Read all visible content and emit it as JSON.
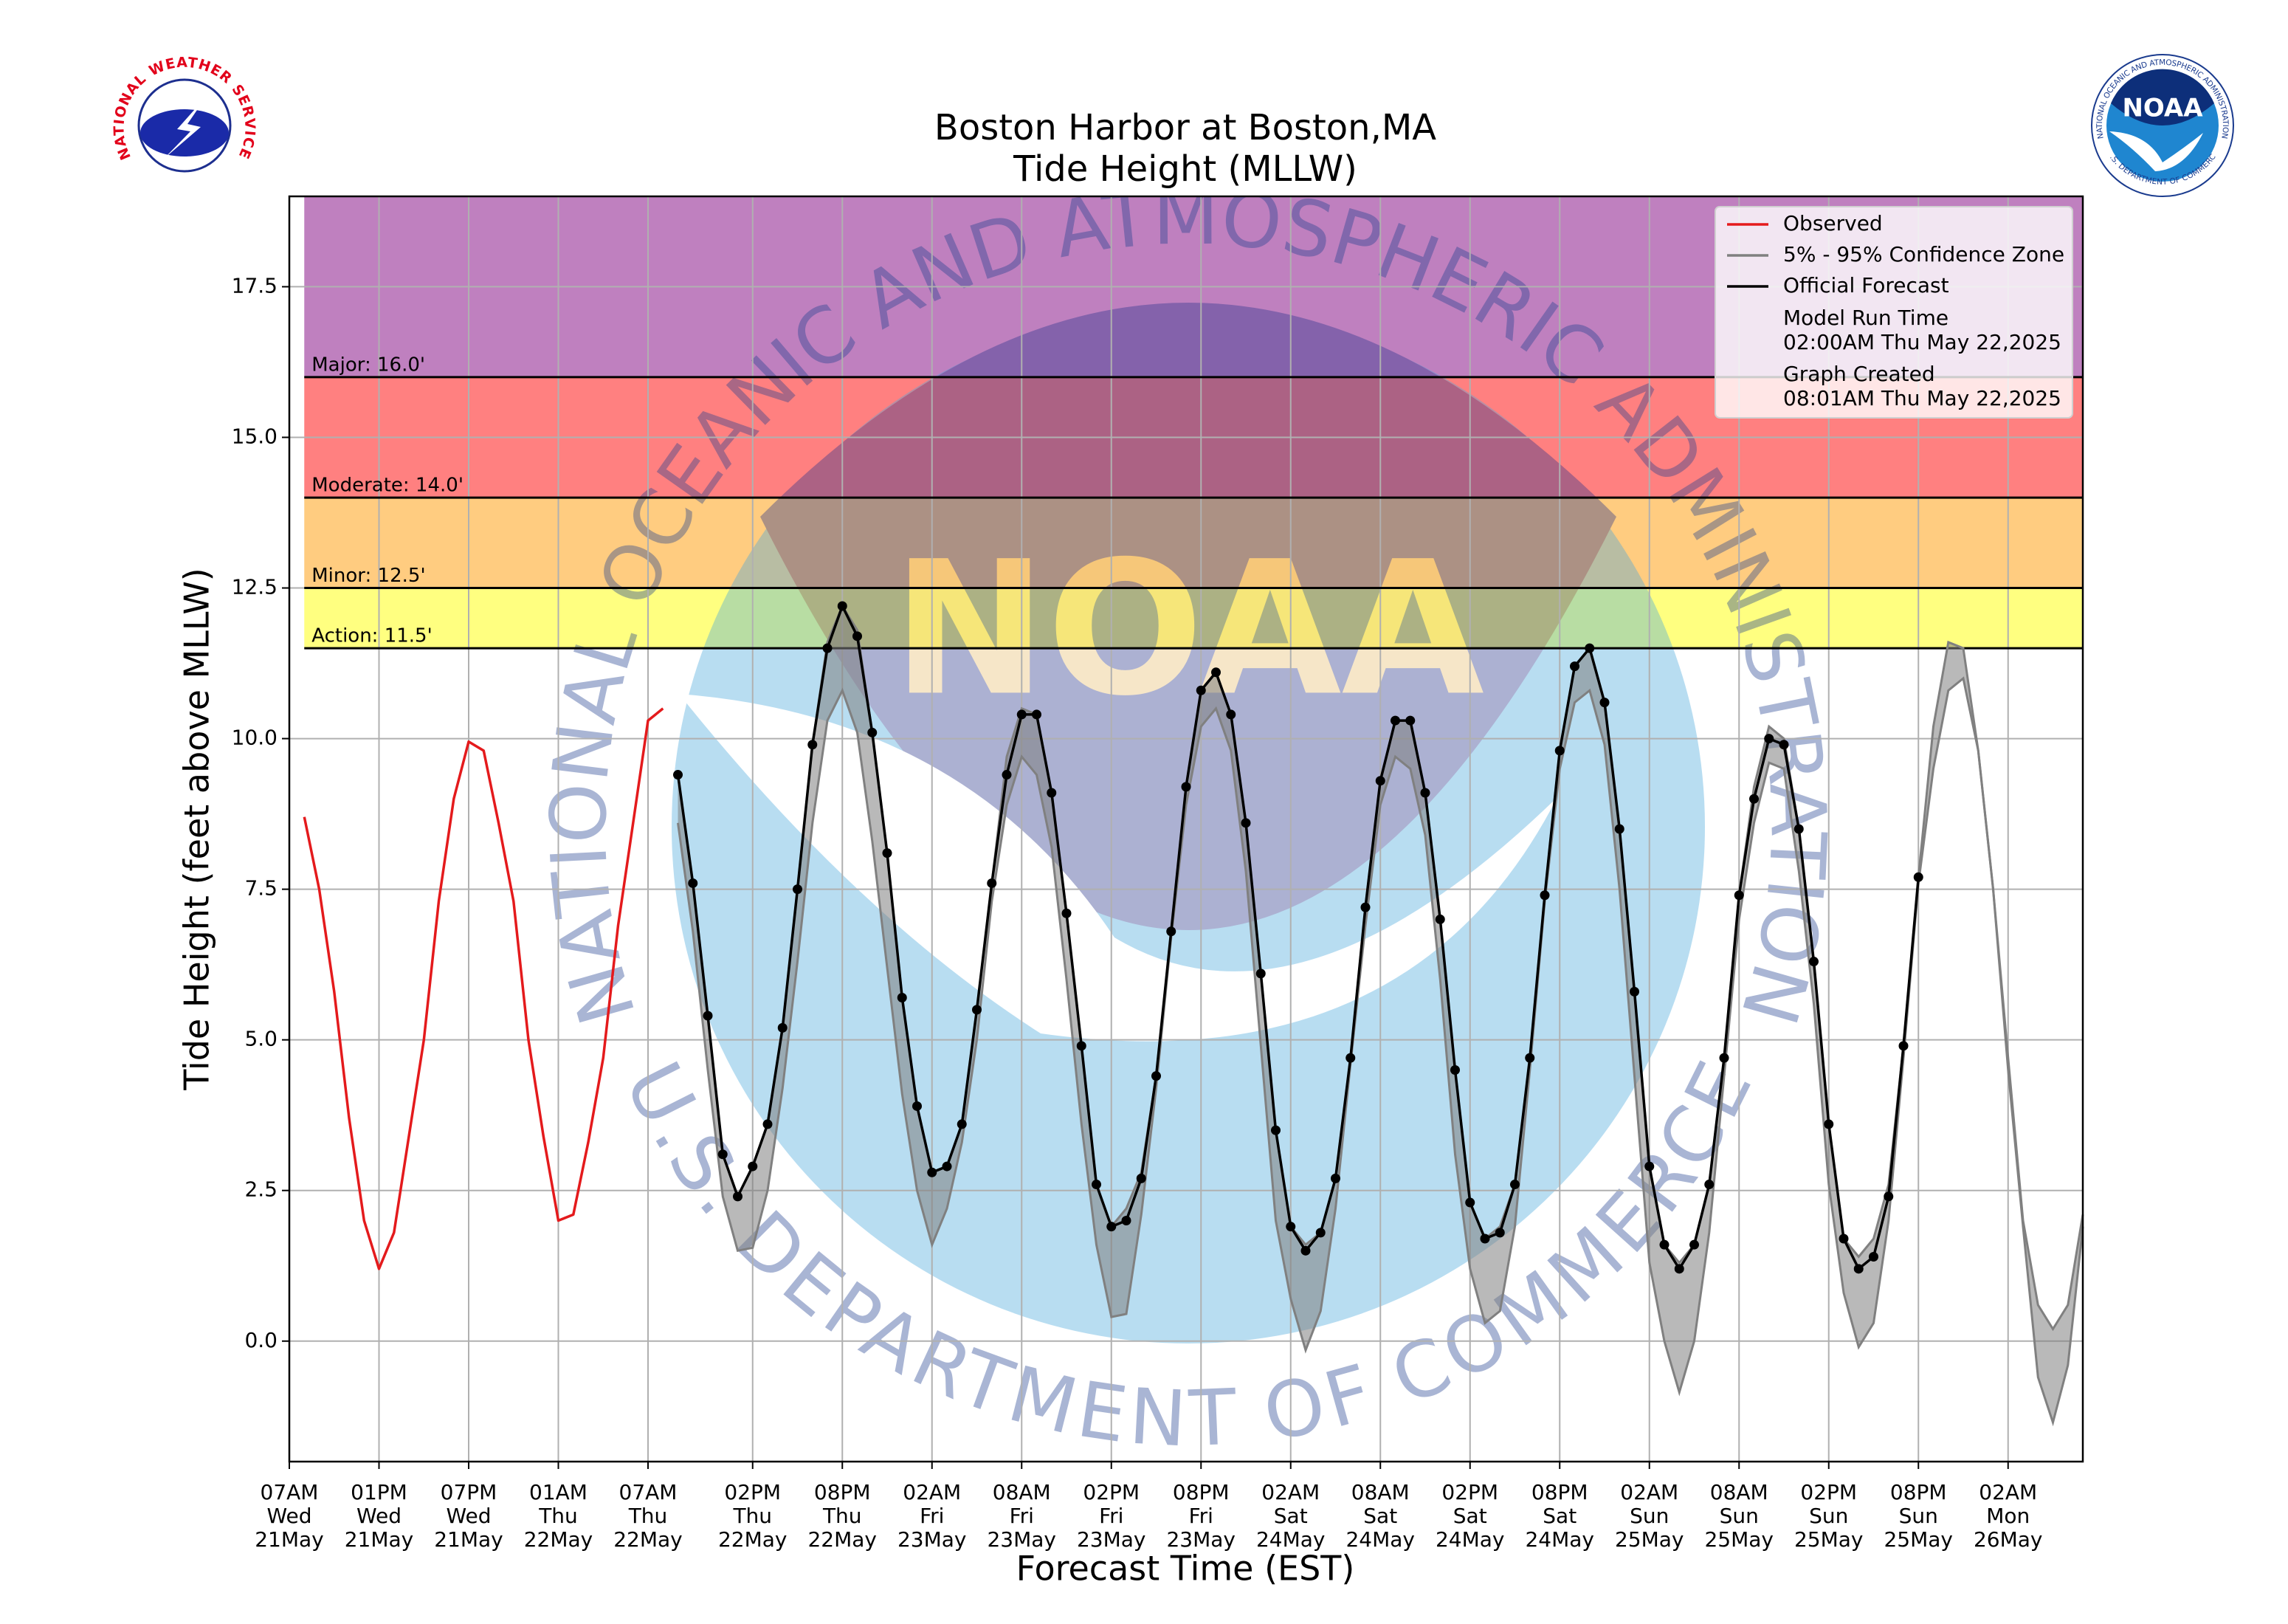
{
  "chart_data": {
    "type": "line",
    "title": "Boston Harbor at Boston,MA",
    "subtitle": "Tide Height (MLLW)",
    "xlabel": "Forecast Time (EST)",
    "ylabel": "Tide Height (feet above MLLW)",
    "xlim": [
      "21May 07:00",
      "26May 07:00"
    ],
    "xticks": [
      {
        "value": "21May 07:00",
        "label": "07AM\nWed\n21May"
      },
      {
        "value": "21May 13:00",
        "label": "01PM\nWed\n21May"
      },
      {
        "value": "21May 19:00",
        "label": "07PM\nWed\n21May"
      },
      {
        "value": "22May 01:00",
        "label": "01AM\nThu\n22May"
      },
      {
        "value": "22May 07:00",
        "label": "07AM\nThu\n22May"
      },
      {
        "value": "22May 14:00",
        "label": "02PM\nThu\n22May"
      },
      {
        "value": "22May 20:00",
        "label": "08PM\nThu\n22May"
      },
      {
        "value": "23May 02:00",
        "label": "02AM\nFri\n23May"
      },
      {
        "value": "23May 08:00",
        "label": "08AM\nFri\n23May"
      },
      {
        "value": "23May 14:00",
        "label": "02PM\nFri\n23May"
      },
      {
        "value": "23May 20:00",
        "label": "08PM\nFri\n23May"
      },
      {
        "value": "24May 02:00",
        "label": "02AM\nSat\n24May"
      },
      {
        "value": "24May 08:00",
        "label": "08AM\nSat\n24May"
      },
      {
        "value": "24May 14:00",
        "label": "02PM\nSat\n24May"
      },
      {
        "value": "24May 20:00",
        "label": "08PM\nSat\n24May"
      },
      {
        "value": "25May 02:00",
        "label": "02AM\nSun\n25May"
      },
      {
        "value": "25May 08:00",
        "label": "08AM\nSun\n25May"
      },
      {
        "value": "25May 14:00",
        "label": "02PM\nSun\n25May"
      },
      {
        "value": "25May 20:00",
        "label": "08PM\nSun\n25May"
      },
      {
        "value": "26May 02:00",
        "label": "02AM\nMon\n26May"
      }
    ],
    "ylim": [
      -2,
      19
    ],
    "yticks": [
      {
        "value": 0,
        "label": "0.0"
      },
      2.5,
      {
        "value": 5,
        "label": "5.0"
      },
      7.5,
      {
        "value": 10,
        "label": "10.0"
      },
      12.5,
      {
        "value": 15,
        "label": "15.0"
      },
      17.5
    ],
    "grid": true,
    "legend": "upper right",
    "flood_start": "21May 08:00",
    "flood_levels": [
      {
        "label": "Action: 11.5'",
        "value": 11.5,
        "color": "#ffff80"
      },
      {
        "label": "Minor: 12.5'",
        "value": 12.5,
        "color": "#ffcc80"
      },
      {
        "label": "Moderate: 14.0'",
        "value": 14,
        "color": "#ff8080"
      },
      {
        "label": "Major: 16.0'",
        "value": 16,
        "color": "#bf80bf"
      }
    ],
    "series": [
      {
        "name": "Observed",
        "color": "#e41a1c",
        "x": [
          "21May 08:00",
          "21May 09:00",
          "21May 10:00",
          "21May 11:00",
          "21May 12:00",
          "21May 13:00",
          "21May 14:00",
          "21May 15:00",
          "21May 16:00",
          "21May 17:00",
          "21May 18:00",
          "21May 19:00",
          "21May 20:00",
          "21May 21:00",
          "21May 22:00",
          "21May 23:00",
          "22May 00:00",
          "22May 01:00",
          "22May 02:00",
          "22May 03:00",
          "22May 04:00",
          "22May 05:00",
          "22May 06:00",
          "22May 07:00",
          "22May 08:00"
        ],
        "values": [
          8.7,
          7.5,
          5.8,
          3.7,
          2.0,
          1.2,
          1.8,
          3.4,
          5.0,
          7.3,
          9.0,
          9.95,
          9.8,
          8.6,
          7.3,
          5.0,
          3.4,
          2.0,
          2.1,
          3.3,
          4.7,
          6.9,
          8.6,
          10.3,
          10.5
        ]
      },
      {
        "name": "5% - 95% Confidence Zone",
        "color": "#808080",
        "x": [
          "22May 09:00",
          "22May 10:00",
          "22May 11:00",
          "22May 12:00",
          "22May 13:00",
          "22May 14:00",
          "22May 15:00",
          "22May 16:00",
          "22May 17:00",
          "22May 18:00",
          "22May 19:00",
          "22May 20:00",
          "22May 21:00",
          "22May 22:00",
          "22May 23:00",
          "23May 00:00",
          "23May 01:00",
          "23May 02:00",
          "23May 03:00",
          "23May 04:00",
          "23May 05:00",
          "23May 06:00",
          "23May 07:00",
          "23May 08:00",
          "23May 09:00",
          "23May 10:00",
          "23May 11:00",
          "23May 12:00",
          "23May 13:00",
          "23May 14:00",
          "23May 15:00",
          "23May 16:00",
          "23May 17:00",
          "23May 18:00",
          "23May 19:00",
          "23May 20:00",
          "23May 21:00",
          "23May 22:00",
          "23May 23:00",
          "24May 00:00",
          "24May 01:00",
          "24May 02:00",
          "24May 03:00",
          "24May 04:00",
          "24May 05:00",
          "24May 06:00",
          "24May 07:00",
          "24May 08:00",
          "24May 09:00",
          "24May 10:00",
          "24May 11:00",
          "24May 12:00",
          "24May 13:00",
          "24May 14:00",
          "24May 15:00",
          "24May 16:00",
          "24May 17:00",
          "24May 18:00",
          "24May 19:00",
          "24May 20:00",
          "24May 21:00",
          "24May 22:00",
          "24May 23:00",
          "25May 00:00",
          "25May 01:00",
          "25May 02:00",
          "25May 03:00",
          "25May 04:00",
          "25May 05:00",
          "25May 06:00",
          "25May 07:00",
          "25May 08:00",
          "25May 09:00",
          "25May 10:00",
          "25May 11:00",
          "25May 12:00",
          "25May 13:00",
          "25May 14:00",
          "25May 15:00",
          "25May 16:00",
          "25May 17:00",
          "25May 18:00",
          "25May 19:00",
          "25May 20:00",
          "25May 21:00",
          "25May 22:00",
          "25May 23:00",
          "26May 00:00",
          "26May 01:00",
          "26May 02:00",
          "26May 03:00",
          "26May 04:00",
          "26May 05:00",
          "26May 06:00",
          "26May 07:00"
        ],
        "lower": [
          8.6,
          6.8,
          4.5,
          2.4,
          1.5,
          1.55,
          2.5,
          4.2,
          6.3,
          8.6,
          10.3,
          10.8,
          10.1,
          8.3,
          6.2,
          4.1,
          2.5,
          1.6,
          2.2,
          3.3,
          5.0,
          7.3,
          8.9,
          9.7,
          9.4,
          8.2,
          6.0,
          3.6,
          1.6,
          0.4,
          0.45,
          2.1,
          4.2,
          6.7,
          8.9,
          10.2,
          10.5,
          9.8,
          7.8,
          4.9,
          2.0,
          0.7,
          -0.15,
          0.5,
          2.2,
          4.6,
          6.9,
          8.9,
          9.7,
          9.5,
          8.4,
          6.0,
          3.1,
          1.2,
          0.3,
          0.5,
          1.9,
          4.5,
          7.3,
          9.5,
          10.6,
          10.8,
          9.9,
          7.5,
          4.4,
          1.3,
          0.0,
          -0.85,
          0.0,
          1.8,
          4.4,
          7.0,
          8.6,
          9.6,
          9.5,
          7.8,
          5.6,
          2.6,
          0.8,
          -0.1,
          0.3,
          2.0,
          4.7,
          7.6,
          9.5,
          10.8,
          11.0,
          9.8,
          7.5,
          4.5,
          1.9,
          -0.6,
          -1.35,
          -0.4,
          1.9
        ],
        "upper": [
          9.4,
          7.6,
          5.4,
          3.1,
          2.4,
          2.9,
          3.6,
          5.2,
          7.5,
          9.9,
          11.6,
          12.2,
          11.8,
          10.1,
          8.1,
          5.7,
          3.9,
          2.8,
          2.9,
          3.6,
          5.5,
          7.6,
          9.7,
          10.5,
          10.4,
          9.1,
          7.1,
          4.9,
          2.6,
          1.9,
          2.2,
          2.8,
          4.4,
          6.8,
          9.2,
          10.8,
          11.1,
          10.4,
          8.6,
          6.1,
          3.5,
          1.9,
          1.6,
          1.8,
          2.7,
          4.7,
          7.2,
          9.3,
          10.3,
          10.3,
          9.1,
          7.0,
          4.5,
          2.3,
          1.7,
          1.9,
          2.6,
          4.7,
          7.4,
          9.8,
          11.2,
          11.5,
          10.6,
          8.5,
          5.8,
          2.9,
          1.6,
          1.3,
          1.6,
          2.6,
          4.7,
          7.4,
          9.2,
          10.2,
          10.0,
          8.5,
          6.3,
          3.6,
          1.7,
          1.4,
          1.7,
          2.6,
          4.9,
          7.7,
          10.2,
          11.6,
          11.5,
          9.8,
          7.5,
          4.7,
          2.0,
          0.6,
          0.2,
          0.6,
          2.1
        ]
      },
      {
        "name": "Official Forecast",
        "color": "#000000",
        "x": [
          "22May 09:00",
          "22May 10:00",
          "22May 11:00",
          "22May 12:00",
          "22May 13:00",
          "22May 14:00",
          "22May 15:00",
          "22May 16:00",
          "22May 17:00",
          "22May 18:00",
          "22May 19:00",
          "22May 20:00",
          "22May 21:00",
          "22May 22:00",
          "22May 23:00",
          "23May 00:00",
          "23May 01:00",
          "23May 02:00",
          "23May 03:00",
          "23May 04:00",
          "23May 05:00",
          "23May 06:00",
          "23May 07:00",
          "23May 08:00",
          "23May 09:00",
          "23May 10:00",
          "23May 11:00",
          "23May 12:00",
          "23May 13:00",
          "23May 14:00",
          "23May 15:00",
          "23May 16:00",
          "23May 17:00",
          "23May 18:00",
          "23May 19:00",
          "23May 20:00",
          "23May 21:00",
          "23May 22:00",
          "23May 23:00",
          "24May 00:00",
          "24May 01:00",
          "24May 02:00",
          "24May 03:00",
          "24May 04:00",
          "24May 05:00",
          "24May 06:00",
          "24May 07:00",
          "24May 08:00",
          "24May 09:00",
          "24May 10:00",
          "24May 11:00",
          "24May 12:00",
          "24May 13:00",
          "24May 14:00",
          "24May 15:00",
          "24May 16:00",
          "24May 17:00",
          "24May 18:00",
          "24May 19:00",
          "24May 20:00",
          "24May 21:00",
          "24May 22:00",
          "24May 23:00",
          "25May 00:00",
          "25May 01:00",
          "25May 02:00",
          "25May 03:00",
          "25May 04:00",
          "25May 05:00",
          "25May 06:00",
          "25May 07:00",
          "25May 08:00",
          "25May 09:00",
          "25May 10:00",
          "25May 11:00",
          "25May 12:00",
          "25May 13:00",
          "25May 14:00",
          "25May 15:00",
          "25May 16:00",
          "25May 17:00",
          "25May 18:00",
          "25May 19:00",
          "25May 20:00"
        ],
        "values": [
          9.4,
          7.6,
          5.4,
          3.1,
          2.4,
          2.9,
          3.6,
          5.2,
          7.5,
          9.9,
          11.5,
          12.2,
          11.7,
          10.1,
          8.1,
          5.7,
          3.9,
          2.8,
          2.9,
          3.6,
          5.5,
          7.6,
          9.4,
          10.4,
          10.4,
          9.1,
          7.1,
          4.9,
          2.6,
          1.9,
          2.0,
          2.7,
          4.4,
          6.8,
          9.2,
          10.8,
          11.1,
          10.4,
          8.6,
          6.1,
          3.5,
          1.9,
          1.5,
          1.8,
          2.7,
          4.7,
          7.2,
          9.3,
          10.3,
          10.3,
          9.1,
          7.0,
          4.5,
          2.3,
          1.7,
          1.8,
          2.6,
          4.7,
          7.4,
          9.8,
          11.2,
          11.5,
          10.6,
          8.5,
          5.8,
          2.9,
          1.6,
          1.2,
          1.6,
          2.6,
          4.7,
          7.4,
          9.0,
          10.0,
          9.9,
          8.5,
          6.3,
          3.6,
          1.7,
          1.2,
          1.4,
          2.4,
          4.9,
          7.7
        ]
      }
    ],
    "legend_notes": [
      {
        "label": "Model Run Time",
        "value": "02:00AM Thu May 22,2025"
      },
      {
        "label": "Graph Created",
        "value": "08:01AM Thu May 22,2025"
      }
    ]
  },
  "logos": {
    "nws": "NATIONAL WEATHER SERVICE",
    "noaa": "NOAA",
    "noaa_top": "NATIONAL OCEANIC AND ATMOSPHERIC ADMINISTRATION",
    "noaa_bottom": "U.S. DEPARTMENT OF COMMERCE"
  }
}
